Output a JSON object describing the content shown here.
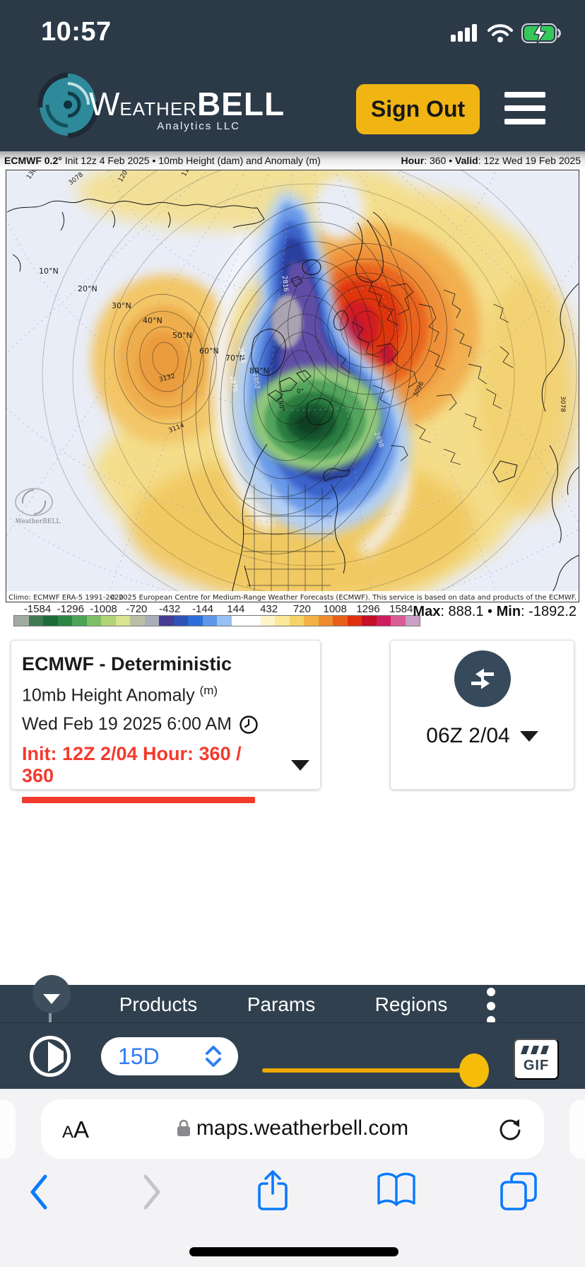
{
  "status_bar": {
    "time": "10:57"
  },
  "header": {
    "logo_w": "W",
    "logo_eather": "EATHER",
    "logo_bell": "BELL",
    "logo_sub": "Analytics LLC",
    "sign_out": "Sign Out"
  },
  "map_header": {
    "model_bold": "ECMWF 0.2",
    "degree": "°",
    "title_rest": " Init 12z 4 Feb 2025 • 10mb Height (dam) and Anomaly (m)",
    "hour_label": "Hour",
    "hour_value": ": 360 • ",
    "valid_label": "Valid",
    "valid_value": ": 12z Wed 19 Feb 2025"
  },
  "map": {
    "lat_labels": [
      "10°N",
      "20°N",
      "30°N",
      "40°N",
      "50°N",
      "60°N",
      "70°N",
      "80°N"
    ],
    "contour_labels": [
      "3078",
      "130",
      "120",
      "110",
      "3132",
      "3114",
      "2916",
      "2970",
      "2862",
      "2816",
      "180°",
      "0°",
      "3096",
      "2898",
      "3078"
    ],
    "watermark": "WeatherBELL",
    "climo": "Climo: ECMWF ERA-5 1991-2020",
    "copyright": "© 2025 European Centre for Medium-Range Weather Forecasts (ECMWF). This service is based on data and products of the ECMWF."
  },
  "colorbar": {
    "ticks": [
      "-1584",
      "-1296",
      "-1008",
      "-720",
      "-432",
      "-144",
      "144",
      "432",
      "720",
      "1008",
      "1296",
      "1584"
    ],
    "segments": [
      "#a2aba2",
      "#3f7a55",
      "#1e6b3a",
      "#2a8643",
      "#4da356",
      "#7fc067",
      "#b1d475",
      "#d8e490",
      "#b9bfa6",
      "#a9aebb",
      "#463c92",
      "#3052b6",
      "#2e6ed8",
      "#5e96e8",
      "#97c0f4",
      "#ffffff",
      "#ffffff",
      "#fdf5c8",
      "#fae898",
      "#f6d368",
      "#f3b246",
      "#ef8c2e",
      "#ea5f1a",
      "#e0300e",
      "#c40f27",
      "#ce1f60",
      "#da5c96",
      "#c9a0c4"
    ],
    "max_label": "Max",
    "max_value": ": 888.1 • ",
    "min_label": "Min",
    "min_value": ": -1892.2"
  },
  "model_card": {
    "title": "ECMWF - Deterministic",
    "param": "10mb Height Anomaly",
    "unit": "(m)",
    "valid_time": "Wed Feb 19 2025 6:00 AM",
    "init_text": "Init: 12Z 2/04  Hour: 360 / 360",
    "progress_pct": 81
  },
  "compare_card": {
    "time": "06Z 2/04"
  },
  "nav": {
    "items": [
      "Products",
      "Params",
      "Regions"
    ]
  },
  "player": {
    "speed": "15D",
    "gif_label": "GIF"
  },
  "browser": {
    "reader": "AA",
    "url": "maps.weatherbell.com"
  },
  "colors": {
    "header_bg": "#2c3a48",
    "accent_yellow": "#f0b513",
    "alert_red": "#f43a2c",
    "ios_blue": "#0a7aff",
    "select_blue": "#2f7cf6",
    "slider_gold": "#f5bd0a",
    "battery_green": "#35c759",
    "logo_teal": "#2f93a3"
  }
}
